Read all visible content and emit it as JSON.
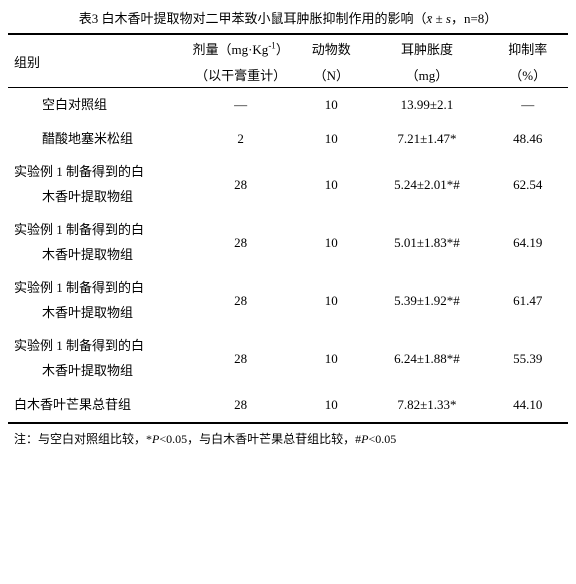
{
  "title_prefix": "表3 白木香叶提取物对二甲苯致小鼠耳肿胀抑制作用的影响（",
  "title_formula": "x̄ ± s",
  "title_suffix": "，n=8）",
  "headers": {
    "group": "组别",
    "dose_line1": "剂量（mg·Kg",
    "dose_sup": "-1",
    "dose_line1_end": "）",
    "dose_line2": "（以干膏重计）",
    "n_line1": "动物数",
    "n_line2": "（N）",
    "swell_line1": "耳肿胀度",
    "swell_line2": "（mg）",
    "inhib_line1": "抑制率",
    "inhib_line2": "（%）"
  },
  "rows": [
    {
      "group_l1": "空白对照组",
      "group_l2": "",
      "dose": "—",
      "n": "10",
      "swell": "13.99±2.1",
      "inhib": "—",
      "single": true,
      "indent": true
    },
    {
      "group_l1": "醋酸地塞米松组",
      "group_l2": "",
      "dose": "2",
      "n": "10",
      "swell": "7.21±1.47*",
      "inhib": "48.46",
      "single": true,
      "indent": true
    },
    {
      "group_l1": "实验例 1 制备得到的白",
      "group_l2": "木香叶提取物组",
      "dose": "28",
      "n": "10",
      "swell": "5.24±2.01*#",
      "inhib": "62.54",
      "single": false
    },
    {
      "group_l1": "实验例 1 制备得到的白",
      "group_l2": "木香叶提取物组",
      "dose": "28",
      "n": "10",
      "swell": "5.01±1.83*#",
      "inhib": "64.19",
      "single": false
    },
    {
      "group_l1": "实验例 1 制备得到的白",
      "group_l2": "木香叶提取物组",
      "dose": "28",
      "n": "10",
      "swell": "5.39±1.92*#",
      "inhib": "61.47",
      "single": false
    },
    {
      "group_l1": "实验例 1 制备得到的白",
      "group_l2": "木香叶提取物组",
      "dose": "28",
      "n": "10",
      "swell": "6.24±1.88*#",
      "inhib": "55.39",
      "single": false
    },
    {
      "group_l1": "白木香叶芒果总苷组",
      "group_l2": "",
      "dose": "28",
      "n": "10",
      "swell": "7.82±1.33*",
      "inhib": "44.10",
      "single": true,
      "indent": false,
      "last": true
    }
  ],
  "footnote": {
    "t1": "注：与空白对照组比较，",
    "p1_sym": "*",
    "p1_txt": "P",
    "p1_val": "<0.05，与白木香叶芒果总苷组比较，",
    "p2_sym": "#",
    "p2_txt": "P",
    "p2_val": "<0.05"
  }
}
